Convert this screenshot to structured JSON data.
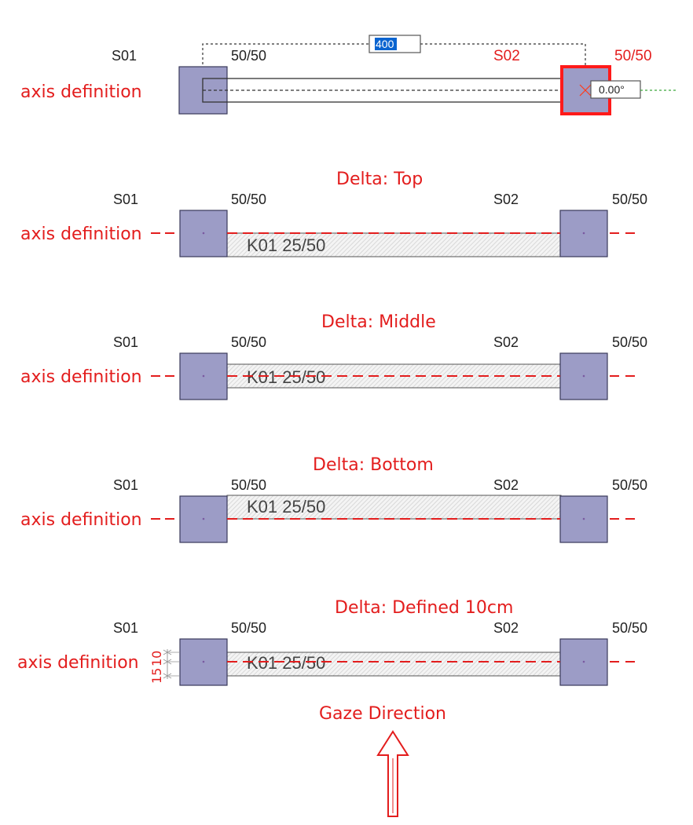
{
  "colors": {
    "column_fill": "#9c9cc6",
    "column_stroke": "#3a3a5a",
    "axis_red": "#e31d1d",
    "beam_hatch": "#d8d8d8",
    "selection_red": "#ff1a1a",
    "selection_blue": "#0a64d0",
    "text_dark": "#222222"
  },
  "editor": {
    "support_left_label": "S01",
    "section_left": "50/50",
    "support_right_label": "S02",
    "section_right": "50/50",
    "length_value": "400",
    "angle_value": "0.00°",
    "axis_label": "axis definition"
  },
  "variants": [
    {
      "title": "Delta: Top",
      "support_left_label": "S01",
      "section_left": "50/50",
      "support_right_label": "S02",
      "section_right": "50/50",
      "beam_label": "K01 25/50",
      "axis_label": "axis definition",
      "alignment": "top"
    },
    {
      "title": "Delta: Middle",
      "support_left_label": "S01",
      "section_left": "50/50",
      "support_right_label": "S02",
      "section_right": "50/50",
      "beam_label": "K01 25/50",
      "axis_label": "axis definition",
      "alignment": "middle"
    },
    {
      "title": "Delta: Bottom",
      "support_left_label": "S01",
      "section_left": "50/50",
      "support_right_label": "S02",
      "section_right": "50/50",
      "beam_label": "K01 25/50",
      "axis_label": "axis definition",
      "alignment": "bottom"
    },
    {
      "title": "Delta: Defined 10cm",
      "support_left_label": "S01",
      "section_left": "50/50",
      "support_right_label": "S02",
      "section_right": "50/50",
      "beam_label": "K01 25/50",
      "axis_label": "axis definition",
      "alignment": "defined",
      "offset_top": "10",
      "offset_bottom": "15"
    }
  ],
  "gaze": {
    "label": "Gaze Direction",
    "icon": "up-arrow-icon"
  }
}
